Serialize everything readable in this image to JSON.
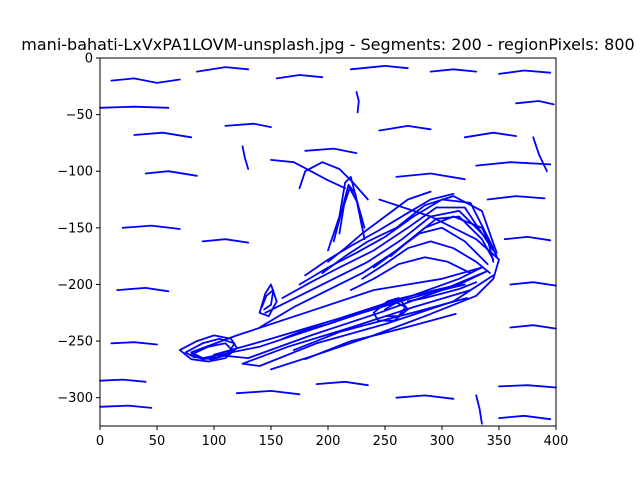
{
  "chart_data": {
    "type": "line",
    "title": "mani-bahati-LxVxPA1LOVM-unsplash.jpg - Segments: 200 - regionPixels: 800",
    "xlabel": "",
    "ylabel": "",
    "xlim": [
      0,
      400
    ],
    "ylim": [
      -325,
      0
    ],
    "grid": false,
    "x_ticks": [
      0,
      50,
      100,
      150,
      200,
      250,
      300,
      350,
      400
    ],
    "y_ticks": [
      0,
      -50,
      -100,
      -150,
      -200,
      -250,
      -300
    ],
    "colors": {
      "line": "#0000ff",
      "axes": "#000000",
      "background": "#ffffff"
    },
    "series": [
      {
        "x": [
          0,
          30,
          60
        ],
        "y": [
          -44,
          -43,
          -44
        ]
      },
      {
        "x": [
          10,
          30,
          50,
          70
        ],
        "y": [
          -20,
          -18,
          -22,
          -19
        ]
      },
      {
        "x": [
          85,
          110,
          130
        ],
        "y": [
          -12,
          -8,
          -10
        ]
      },
      {
        "x": [
          155,
          175,
          195
        ],
        "y": [
          -18,
          -15,
          -17
        ]
      },
      {
        "x": [
          220,
          250,
          270
        ],
        "y": [
          -10,
          -7,
          -9
        ]
      },
      {
        "x": [
          290,
          310,
          330
        ],
        "y": [
          -12,
          -10,
          -12
        ]
      },
      {
        "x": [
          350,
          372,
          395
        ],
        "y": [
          -14,
          -11,
          -13
        ]
      },
      {
        "x": [
          30,
          55,
          80
        ],
        "y": [
          -68,
          -66,
          -70
        ]
      },
      {
        "x": [
          110,
          135,
          150
        ],
        "y": [
          -60,
          -58,
          -61
        ]
      },
      {
        "x": [
          180,
          205,
          225
        ],
        "y": [
          -82,
          -80,
          -84
        ]
      },
      {
        "x": [
          245,
          270,
          290
        ],
        "y": [
          -64,
          -60,
          -63
        ]
      },
      {
        "x": [
          320,
          345,
          365
        ],
        "y": [
          -70,
          -66,
          -69
        ]
      },
      {
        "x": [
          365,
          385,
          398
        ],
        "y": [
          -40,
          -38,
          -41
        ]
      },
      {
        "x": [
          125,
          127,
          130
        ],
        "y": [
          -78,
          -88,
          -98
        ]
      },
      {
        "x": [
          225,
          227,
          226
        ],
        "y": [
          -30,
          -38,
          -48
        ]
      },
      {
        "x": [
          150,
          170,
          185,
          200,
          215
        ],
        "y": [
          -90,
          -92,
          -100,
          -108,
          -115
        ]
      },
      {
        "x": [
          175,
          180,
          195,
          210,
          222,
          235
        ],
        "y": [
          -115,
          -100,
          -92,
          -98,
          -110,
          -125
        ]
      },
      {
        "x": [
          40,
          60,
          85
        ],
        "y": [
          -102,
          -100,
          -104
        ]
      },
      {
        "x": [
          260,
          290,
          320
        ],
        "y": [
          -105,
          -102,
          -107
        ]
      },
      {
        "x": [
          330,
          360,
          395
        ],
        "y": [
          -95,
          -92,
          -94
        ]
      },
      {
        "x": [
          340,
          365,
          390
        ],
        "y": [
          -125,
          -122,
          -124
        ]
      },
      {
        "x": [
          20,
          45,
          70
        ],
        "y": [
          -150,
          -148,
          -151
        ]
      },
      {
        "x": [
          90,
          110,
          130
        ],
        "y": [
          -162,
          -160,
          -163
        ]
      },
      {
        "x": [
          355,
          375,
          395
        ],
        "y": [
          -160,
          -158,
          -161
        ]
      },
      {
        "x": [
          15,
          40,
          60
        ],
        "y": [
          -205,
          -203,
          -206
        ]
      },
      {
        "x": [
          360,
          380,
          400
        ],
        "y": [
          -200,
          -198,
          -201
        ]
      },
      {
        "x": [
          10,
          30,
          50
        ],
        "y": [
          -252,
          -251,
          -253
        ]
      },
      {
        "x": [
          360,
          380,
          400
        ],
        "y": [
          -238,
          -236,
          -239
        ]
      },
      {
        "x": [
          0,
          20,
          40
        ],
        "y": [
          -285,
          -284,
          -286
        ]
      },
      {
        "x": [
          350,
          375,
          400
        ],
        "y": [
          -290,
          -289,
          -291
        ]
      },
      {
        "x": [
          0,
          25,
          45
        ],
        "y": [
          -308,
          -307,
          -309
        ]
      },
      {
        "x": [
          120,
          150,
          175
        ],
        "y": [
          -296,
          -294,
          -297
        ]
      },
      {
        "x": [
          190,
          215,
          235
        ],
        "y": [
          -288,
          -286,
          -289
        ]
      },
      {
        "x": [
          260,
          285,
          310
        ],
        "y": [
          -300,
          -298,
          -301
        ]
      },
      {
        "x": [
          330,
          333,
          335
        ],
        "y": [
          -298,
          -310,
          -323
        ]
      },
      {
        "x": [
          350,
          372,
          395
        ],
        "y": [
          -318,
          -316,
          -319
        ]
      },
      {
        "x": [
          380,
          385,
          392
        ],
        "y": [
          -70,
          -85,
          -100
        ]
      },
      {
        "x": [
          80,
          120,
          180,
          240,
          300,
          335,
          315,
          260,
          200,
          140,
          90,
          80
        ],
        "y": [
          -260,
          -245,
          -225,
          -205,
          -195,
          -185,
          -195,
          -215,
          -235,
          -255,
          -265,
          -260
        ]
      },
      {
        "x": [
          100,
          150,
          210,
          265,
          315,
          340,
          300,
          245,
          185,
          130,
          100
        ],
        "y": [
          -262,
          -248,
          -230,
          -212,
          -200,
          -188,
          -205,
          -225,
          -245,
          -265,
          -262
        ]
      },
      {
        "x": [
          125,
          165,
          220,
          275,
          325,
          345,
          310,
          250,
          190,
          140,
          125
        ],
        "y": [
          -270,
          -255,
          -238,
          -220,
          -205,
          -192,
          -215,
          -235,
          -252,
          -272,
          -270
        ]
      },
      {
        "x": [
          150,
          190,
          240,
          285,
          330,
          345,
          350,
          330,
          290,
          245
        ],
        "y": [
          -275,
          -262,
          -245,
          -228,
          -210,
          -195,
          -178,
          -160,
          -140,
          -125
        ]
      },
      {
        "x": [
          140,
          170,
          200,
          230,
          260,
          285,
          310,
          335,
          348
        ],
        "y": [
          -238,
          -220,
          -205,
          -190,
          -170,
          -150,
          -140,
          -150,
          -175
        ]
      },
      {
        "x": [
          145,
          175,
          205,
          235,
          265,
          290,
          315,
          340,
          345
        ],
        "y": [
          -225,
          -210,
          -195,
          -180,
          -160,
          -140,
          -135,
          -160,
          -180
        ]
      },
      {
        "x": [
          160,
          185,
          210,
          240,
          270,
          295,
          320,
          345
        ],
        "y": [
          -212,
          -198,
          -185,
          -170,
          -150,
          -132,
          -132,
          -170
        ]
      },
      {
        "x": [
          175,
          200,
          225,
          250,
          275,
          300,
          325,
          345
        ],
        "y": [
          -200,
          -185,
          -172,
          -158,
          -140,
          -125,
          -128,
          -168
        ]
      },
      {
        "x": [
          195,
          215,
          235,
          260,
          285,
          310,
          335,
          348
        ],
        "y": [
          -190,
          -175,
          -162,
          -150,
          -130,
          -122,
          -135,
          -172
        ]
      },
      {
        "x": [
          200,
          210,
          215,
          220,
          225,
          232
        ],
        "y": [
          -170,
          -140,
          -110,
          -105,
          -125,
          -150
        ]
      },
      {
        "x": [
          205,
          212,
          218,
          224,
          230
        ],
        "y": [
          -162,
          -135,
          -112,
          -120,
          -150
        ]
      },
      {
        "x": [
          210,
          214,
          219,
          226,
          232
        ],
        "y": [
          -155,
          -130,
          -115,
          -128,
          -160
        ]
      },
      {
        "x": [
          200,
          215,
          230,
          250,
          270,
          290
        ],
        "y": [
          -180,
          -168,
          -155,
          -140,
          -125,
          -118
        ]
      },
      {
        "x": [
          180,
          200,
          220,
          245,
          268,
          290,
          310
        ],
        "y": [
          -192,
          -178,
          -166,
          -152,
          -138,
          -125,
          -120
        ]
      },
      {
        "x": [
          255,
          275,
          295,
          315,
          335,
          345
        ],
        "y": [
          -175,
          -158,
          -142,
          -140,
          -160,
          -178
        ]
      },
      {
        "x": [
          240,
          260,
          280,
          300,
          320,
          340
        ],
        "y": [
          -185,
          -170,
          -155,
          -150,
          -162,
          -182
        ]
      },
      {
        "x": [
          230,
          250,
          270,
          290,
          310,
          330,
          342
        ],
        "y": [
          -195,
          -182,
          -168,
          -162,
          -168,
          -180,
          -190
        ]
      },
      {
        "x": [
          220,
          240,
          262,
          285,
          305,
          325
        ],
        "y": [
          -205,
          -195,
          -182,
          -176,
          -180,
          -190
        ]
      },
      {
        "x": [
          140,
          145,
          150,
          155,
          148,
          140
        ],
        "y": [
          -225,
          -208,
          -200,
          -215,
          -228,
          -225
        ]
      },
      {
        "x": [
          142,
          146,
          152,
          150,
          144
        ],
        "y": [
          -220,
          -210,
          -205,
          -218,
          -222
        ]
      },
      {
        "x": [
          70,
          85,
          100,
          115,
          120,
          110,
          95,
          80,
          70
        ],
        "y": [
          -258,
          -250,
          -245,
          -248,
          -256,
          -265,
          -268,
          -266,
          -258
        ]
      },
      {
        "x": [
          75,
          90,
          105,
          118,
          112,
          98,
          82,
          75
        ],
        "y": [
          -260,
          -252,
          -248,
          -252,
          -262,
          -266,
          -264,
          -260
        ]
      },
      {
        "x": [
          80,
          95,
          110,
          116,
          105,
          90,
          80
        ],
        "y": [
          -262,
          -255,
          -252,
          -258,
          -264,
          -266,
          -262
        ]
      },
      {
        "x": [
          160,
          180,
          200,
          220,
          240,
          260,
          280,
          300,
          320
        ],
        "y": [
          -248,
          -240,
          -235,
          -228,
          -222,
          -216,
          -210,
          -205,
          -200
        ]
      },
      {
        "x": [
          170,
          190,
          210,
          232,
          255,
          278,
          300,
          322
        ],
        "y": [
          -258,
          -250,
          -242,
          -236,
          -230,
          -224,
          -218,
          -212
        ]
      },
      {
        "x": [
          180,
          200,
          220,
          245,
          268,
          290,
          312
        ],
        "y": [
          -266,
          -258,
          -250,
          -244,
          -238,
          -232,
          -226
        ]
      },
      {
        "x": [
          240,
          252,
          262,
          270,
          258,
          244,
          240
        ],
        "y": [
          -225,
          -215,
          -212,
          -222,
          -232,
          -232,
          -225
        ]
      },
      {
        "x": [
          250,
          260,
          268,
          262,
          252
        ],
        "y": [
          -222,
          -216,
          -220,
          -228,
          -228
        ]
      },
      {
        "x": [
          270,
          285,
          300,
          315,
          330
        ],
        "y": [
          -215,
          -212,
          -208,
          -204,
          -198
        ]
      }
    ]
  }
}
